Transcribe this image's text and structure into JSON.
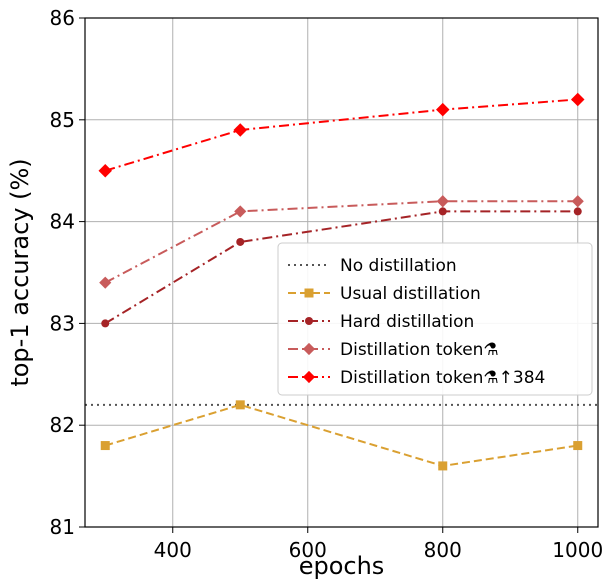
{
  "chart_data": {
    "type": "line",
    "title": "",
    "xlabel": "epochs",
    "ylabel": "top-1 accuracy (%)",
    "xlim": [
      270,
      1030
    ],
    "ylim": [
      81,
      86
    ],
    "xticks": [
      400,
      600,
      800,
      1000
    ],
    "yticks": [
      81,
      82,
      83,
      84,
      85,
      86
    ],
    "xtick_labels": [
      "400",
      "600",
      "800",
      "1000"
    ],
    "ytick_labels": [
      "81",
      "82",
      "83",
      "84",
      "85",
      "86"
    ],
    "grid": true,
    "legend_position": "center-right",
    "x": [
      300,
      500,
      800,
      1000
    ],
    "series": [
      {
        "name": "No distillation",
        "kind": "hline",
        "value": 82.2,
        "color": "#555555",
        "dash": "dot",
        "marker": "none"
      },
      {
        "name": "Usual distillation",
        "values": [
          81.8,
          82.2,
          81.6,
          81.8
        ],
        "color": "#DAA031",
        "dash": "dashed",
        "marker": "square"
      },
      {
        "name": "Hard distillation",
        "values": [
          83.0,
          83.8,
          84.1,
          84.1
        ],
        "color": "#A52326",
        "dash": "dashdot",
        "marker": "circle"
      },
      {
        "name": "Distillation token⚗",
        "values": [
          83.4,
          84.1,
          84.2,
          84.2
        ],
        "color": "#C85B5B",
        "dash": "dashdot",
        "marker": "diamond"
      },
      {
        "name": "Distillation token⚗↑384",
        "values": [
          84.5,
          84.9,
          85.1,
          85.2
        ],
        "color": "#FF0000",
        "dash": "dashdot",
        "marker": "diamond"
      }
    ]
  }
}
